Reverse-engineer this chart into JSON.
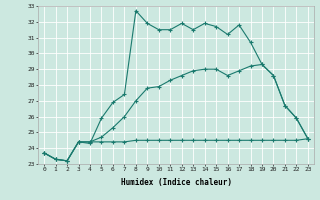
{
  "xlabel": "Humidex (Indice chaleur)",
  "x_values": [
    0,
    1,
    2,
    3,
    4,
    5,
    6,
    7,
    8,
    9,
    10,
    11,
    12,
    13,
    14,
    15,
    16,
    17,
    18,
    19,
    20,
    21,
    22,
    23
  ],
  "line1_y": [
    23.7,
    23.3,
    23.2,
    24.4,
    24.3,
    25.9,
    26.9,
    27.4,
    32.7,
    31.9,
    31.5,
    31.5,
    31.9,
    31.5,
    31.9,
    31.7,
    31.2,
    31.8,
    30.7,
    29.3,
    28.6,
    26.7,
    25.9,
    24.6
  ],
  "line2_y": [
    23.7,
    23.3,
    23.2,
    24.4,
    24.4,
    24.4,
    24.4,
    24.4,
    24.5,
    24.5,
    24.5,
    24.5,
    24.5,
    24.5,
    24.5,
    24.5,
    24.5,
    24.5,
    24.5,
    24.5,
    24.5,
    24.5,
    24.5,
    24.6
  ],
  "line3_y": [
    23.7,
    23.3,
    23.2,
    24.4,
    24.4,
    24.7,
    25.3,
    26.0,
    27.0,
    27.8,
    27.9,
    28.3,
    28.6,
    28.9,
    29.0,
    29.0,
    28.6,
    28.9,
    29.2,
    29.3,
    28.6,
    26.7,
    25.9,
    24.6
  ],
  "ylim": [
    23,
    33
  ],
  "xlim_min": -0.5,
  "xlim_max": 23.5,
  "line_color": "#1a7a6e",
  "bg_color": "#cce8e0",
  "grid_color": "#ffffff",
  "yticks": [
    23,
    24,
    25,
    26,
    27,
    28,
    29,
    30,
    31,
    32,
    33
  ],
  "xticks": [
    0,
    1,
    2,
    3,
    4,
    5,
    6,
    7,
    8,
    9,
    10,
    11,
    12,
    13,
    14,
    15,
    16,
    17,
    18,
    19,
    20,
    21,
    22,
    23
  ]
}
